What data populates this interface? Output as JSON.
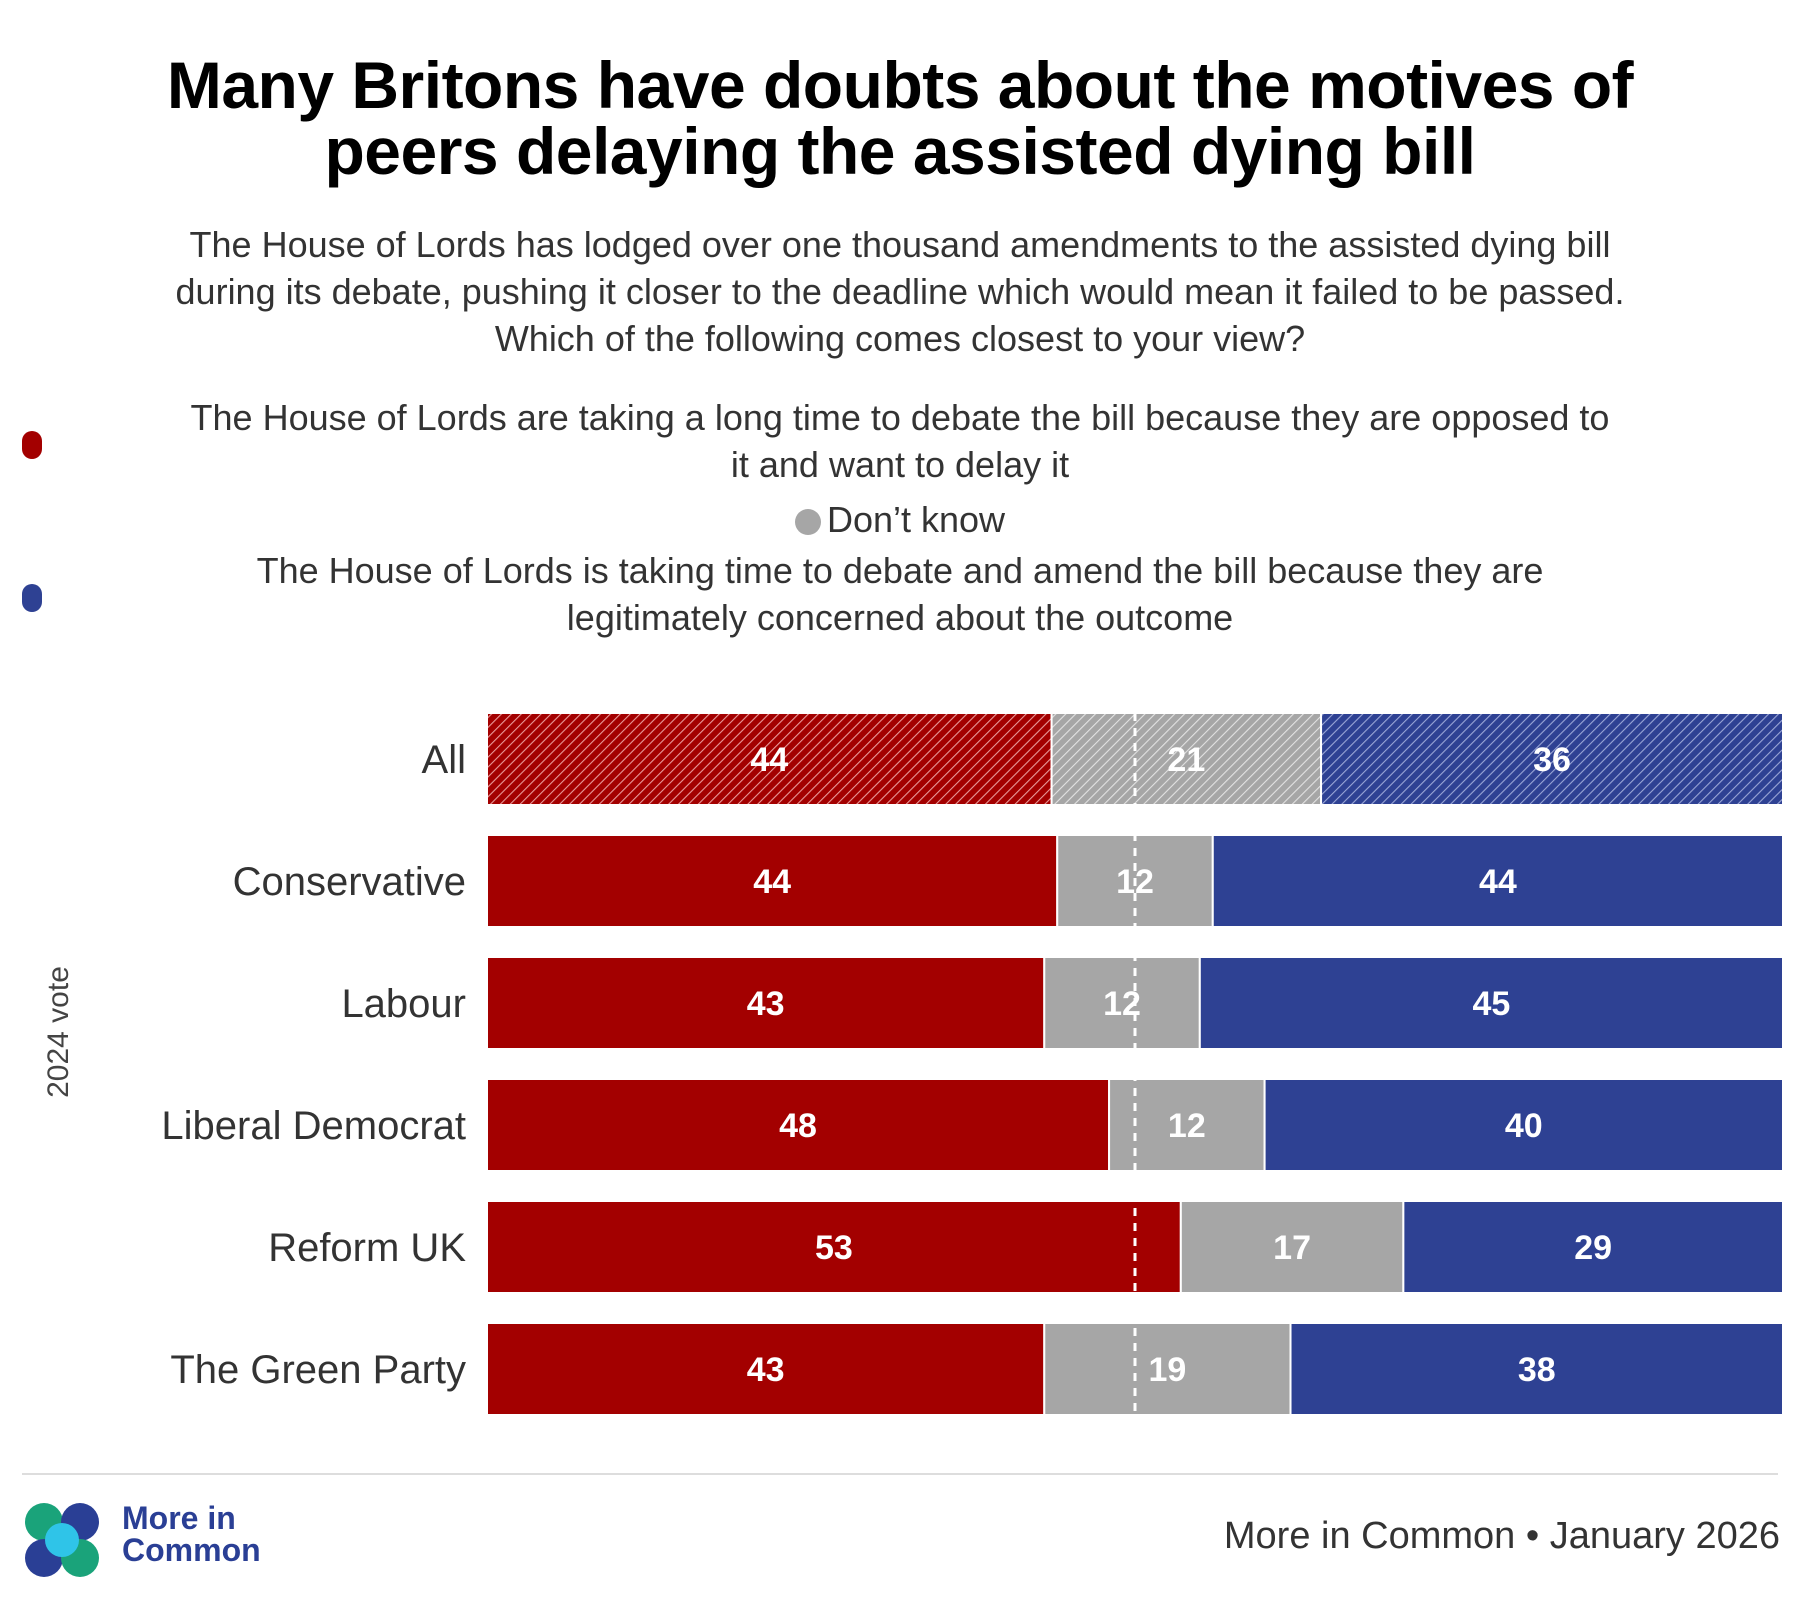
{
  "title_line1": "Many Britons have doubts about the motives of",
  "title_line2": "peers delaying the assisted dying bill",
  "subtitle_line1": "The House of Lords has lodged over one thousand amendments to the assisted dying bill",
  "subtitle_line2": "during its debate, pushing it closer to the deadline which would mean it failed to be passed.",
  "subtitle_line3": "Which of the following comes closest to your view?",
  "legend": {
    "oppose_line1": "The House of Lords are taking a long time to debate the bill because they are opposed to",
    "oppose_line2": "it and want to delay it",
    "dont_know": "Don’t know",
    "concerned_line1": "The House of Lords is taking time to debate and amend the bill because they are",
    "concerned_line2": "legitimately concerned about the outcome"
  },
  "colors": {
    "oppose": "#a30000",
    "dont_know": "#a6a6a6",
    "concerned": "#2e4193"
  },
  "chart_data": {
    "type": "bar",
    "orientation": "horizontal",
    "stacked": true,
    "y_axis_title": "2024 vote",
    "categories": [
      "All",
      "Conservative",
      "Labour",
      "Liberal Democrat",
      "Reform UK",
      "The Green Party"
    ],
    "series": [
      {
        "name": "The House of Lords are taking a long time to debate the bill because they are opposed to it and want to delay it",
        "values": [
          44,
          44,
          43,
          48,
          53,
          43
        ]
      },
      {
        "name": "Don’t know",
        "values": [
          21,
          12,
          12,
          12,
          17,
          19
        ]
      },
      {
        "name": "The House of Lords is taking time to debate and amend the bill because they are legitimately concerned about the outcome",
        "values": [
          36,
          44,
          45,
          40,
          29,
          38
        ]
      }
    ],
    "reference_line": 50,
    "hatched_categories": [
      "All"
    ],
    "xlim": [
      0,
      100
    ]
  },
  "footer": {
    "logo_line1": "More in",
    "logo_line2": "Common",
    "source": "More in Common • January 2026"
  }
}
